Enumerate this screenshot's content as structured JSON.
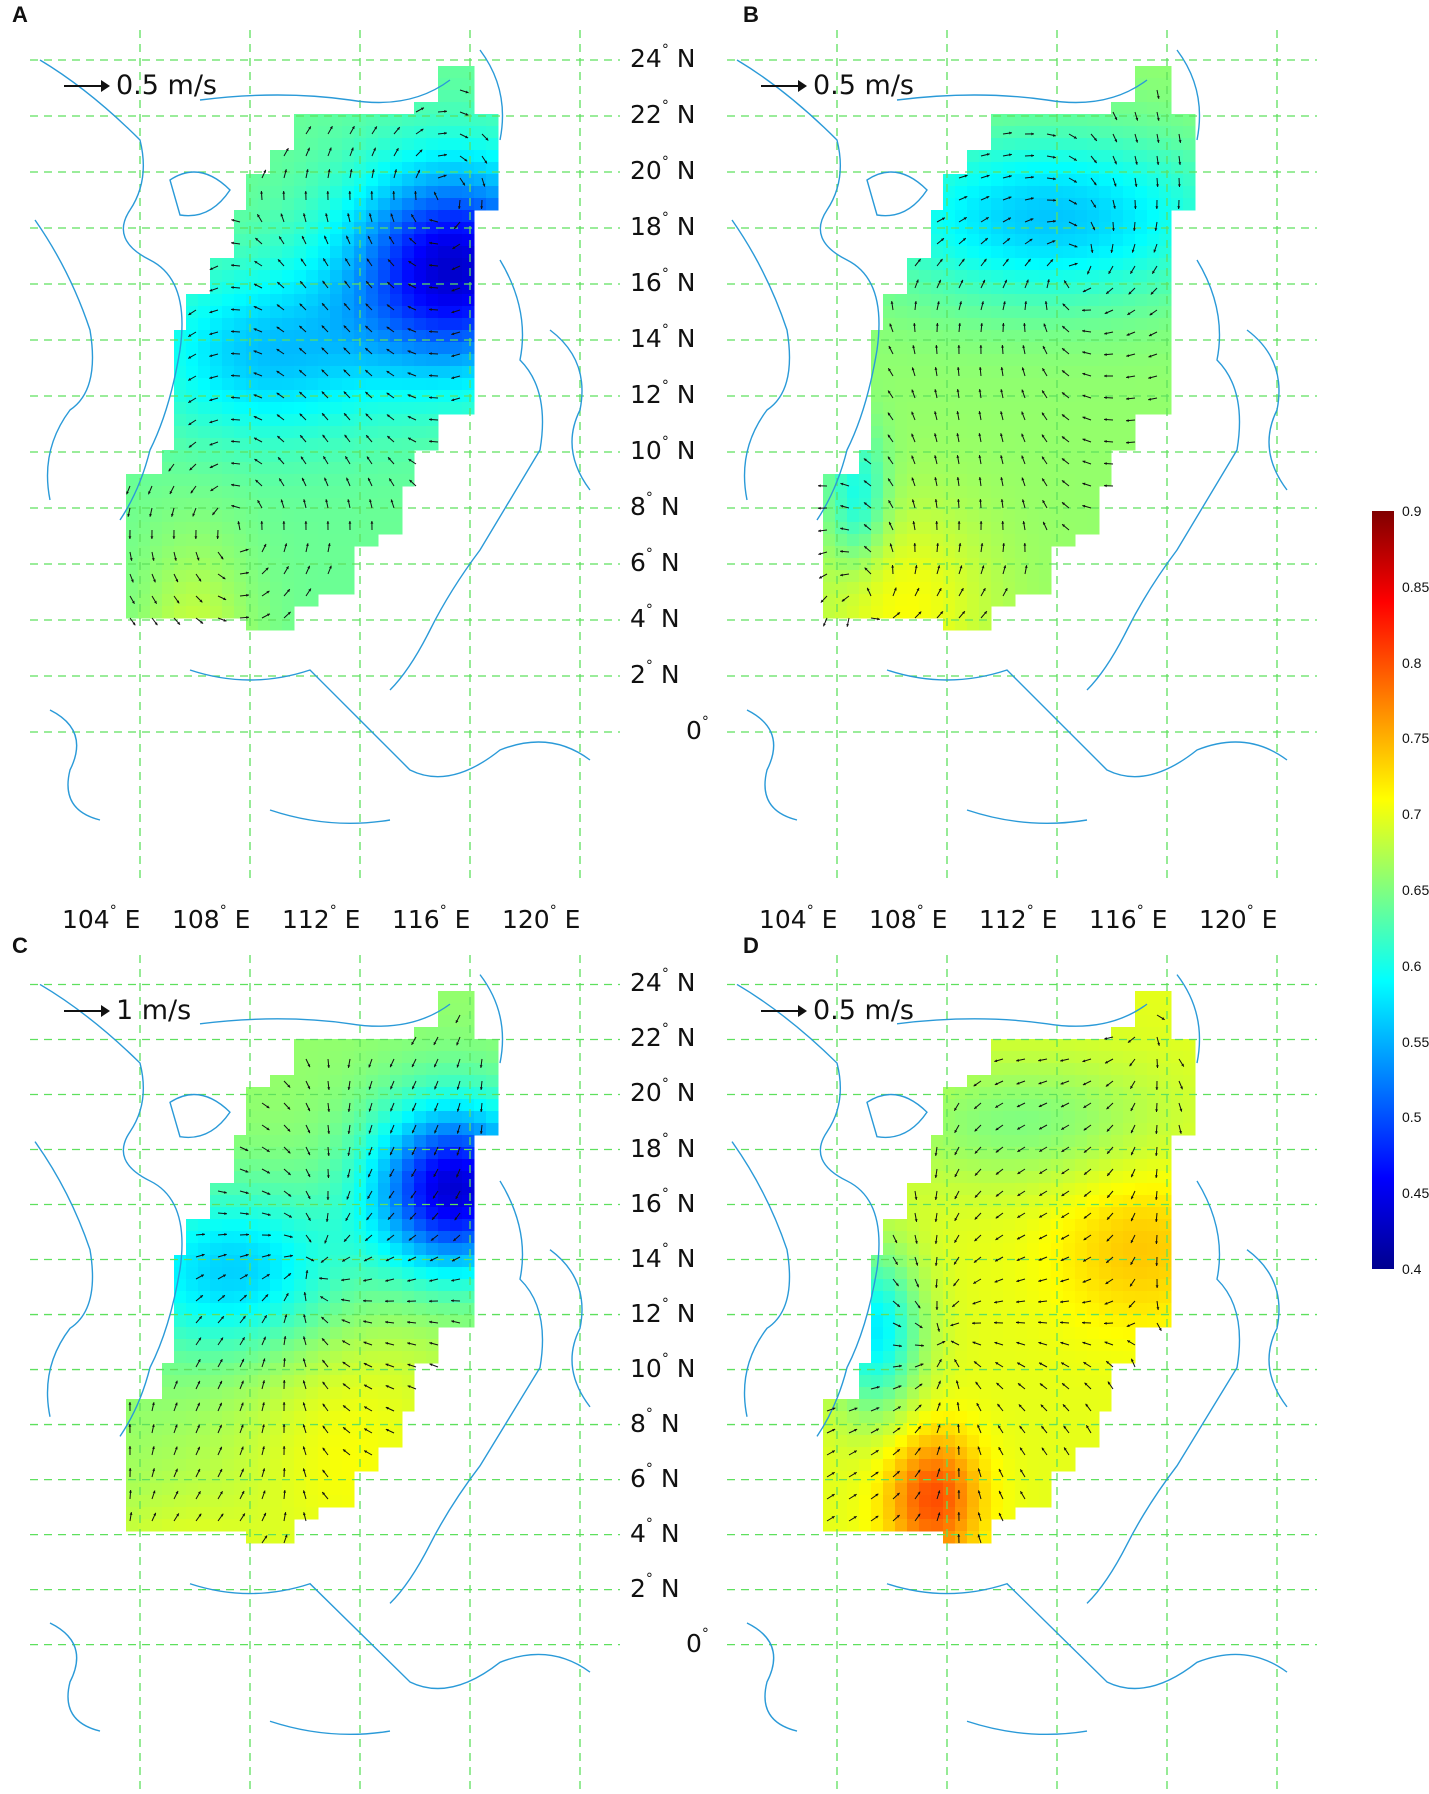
{
  "panels": [
    {
      "letter": "A",
      "scale": "0.5 m/s"
    },
    {
      "letter": "B",
      "scale": "0.5 m/s"
    },
    {
      "letter": "C",
      "scale": "1 m/s"
    },
    {
      "letter": "D",
      "scale": "0.5 m/s"
    }
  ],
  "lat_ticks": [
    "24",
    "22",
    "20",
    "18",
    "16",
    "14",
    "12",
    "10",
    "8",
    "6",
    "4",
    "2",
    "0"
  ],
  "lat_suffix": "N",
  "lon_ticks": [
    "104",
    "108",
    "112",
    "116",
    "120"
  ],
  "lon_suffix": "E",
  "degree": "°",
  "colorbar": {
    "ticks": [
      "0.9",
      "0.85",
      "0.8",
      "0.75",
      "0.7",
      "0.65",
      "0.6",
      "0.55",
      "0.5",
      "0.45",
      "0.4"
    ],
    "min": 0.4,
    "max": 0.9,
    "colormap": "jet"
  },
  "colors": {
    "grid": "#5ee05e",
    "coast": "#2a9ad8",
    "vector": "#111111"
  }
}
